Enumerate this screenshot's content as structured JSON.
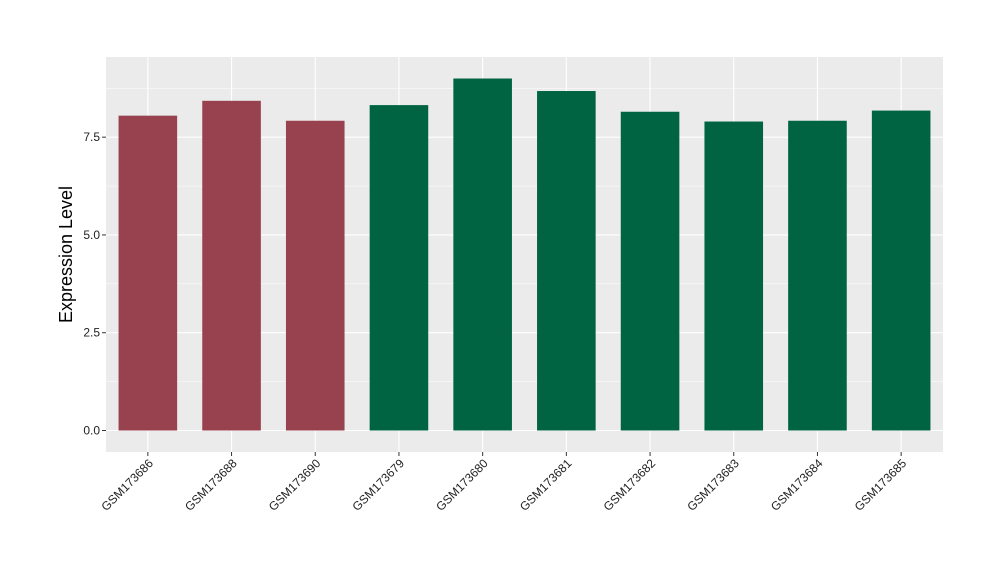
{
  "chart_data": {
    "type": "bar",
    "title": "",
    "xlabel": "",
    "ylabel": "Expression Level",
    "ylim": [
      -0.55,
      9.55
    ],
    "yticks": [
      0.0,
      2.5,
      5.0,
      7.5
    ],
    "ytick_labels": [
      "0.0",
      "2.5",
      "5.0",
      "7.5"
    ],
    "grid": true,
    "categories": [
      "GSM173686",
      "GSM173688",
      "GSM173690",
      "GSM173679",
      "GSM173680",
      "GSM173681",
      "GSM173682",
      "GSM173683",
      "GSM173684",
      "GSM173685"
    ],
    "values": [
      8.05,
      8.43,
      7.92,
      8.32,
      9.0,
      8.68,
      8.15,
      7.9,
      7.92,
      8.18
    ],
    "bar_colors": [
      "#98414F",
      "#98414F",
      "#98414F",
      "#006443",
      "#006443",
      "#006443",
      "#006443",
      "#006443",
      "#006443",
      "#006443"
    ],
    "panel_background": "#EBEBEB",
    "grid_color": "#FFFFFF"
  }
}
